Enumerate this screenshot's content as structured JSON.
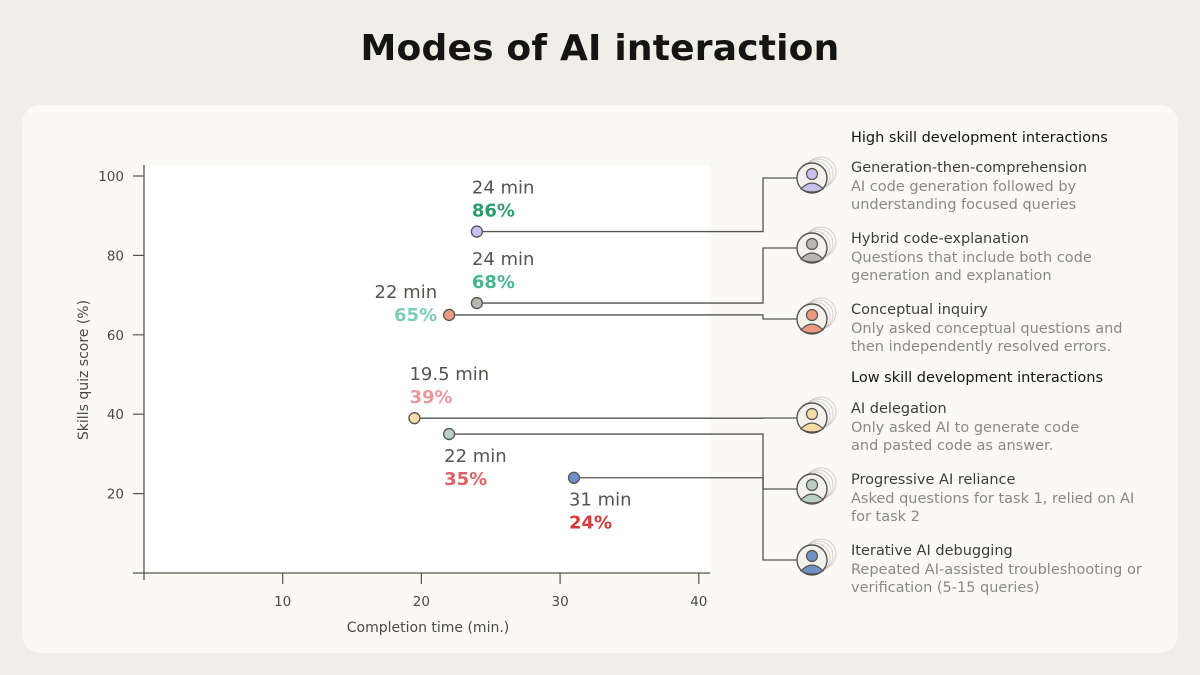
{
  "title": "Modes of AI interaction",
  "legend": {
    "high_heading": "High skill development interactions",
    "low_heading": "Low skill development interactions",
    "items": [
      {
        "name": "Generation-then-comprehension",
        "desc": "AI code generation followed by understanding focused queries",
        "color": "#c6c1ee",
        "group": "high",
        "icon": "user-avatar-icon"
      },
      {
        "name": "Hybrid code-explanation",
        "desc": "Questions that include both code generation and explanation",
        "color": "#b9b7af",
        "group": "high",
        "icon": "user-avatar-icon"
      },
      {
        "name": "Conceptual inquiry",
        "desc": "Only asked conceptual questions and then independently resolved errors.",
        "color": "#ea9a7f",
        "group": "high",
        "icon": "user-avatar-icon"
      },
      {
        "name": "AI delegation",
        "desc": "Only asked AI to generate code and pasted code as answer.",
        "color": "#f6dca8",
        "group": "low",
        "icon": "user-avatar-icon"
      },
      {
        "name": "Progressive AI reliance",
        "desc": "Asked questions for task 1, relied on AI for task 2",
        "color": "#bccfc5",
        "group": "low",
        "icon": "user-avatar-icon"
      },
      {
        "name": "Iterative AI debugging",
        "desc": "Repeated AI-assisted troubleshooting or verification (5-15 queries)",
        "color": "#6e92c6",
        "group": "low",
        "icon": "user-avatar-icon"
      }
    ]
  },
  "chart_data": {
    "type": "scatter",
    "xlabel": "Completion time (min.)",
    "ylabel": "Skills quiz score (%)",
    "xlim": [
      0,
      41
    ],
    "ylim": [
      0,
      102
    ],
    "xticks": [
      10,
      20,
      30,
      40
    ],
    "yticks": [
      20,
      40,
      60,
      80,
      100
    ],
    "grid": false,
    "points": [
      {
        "series": "Generation-then-comprehension",
        "x": 24,
        "y": 86,
        "time_label": "24 min",
        "score_label": "86%",
        "score_color": "#2b9d6c",
        "label_pos": "above"
      },
      {
        "series": "Hybrid code-explanation",
        "x": 24,
        "y": 68,
        "time_label": "24 min",
        "score_label": "68%",
        "score_color": "#45b68f",
        "label_pos": "above"
      },
      {
        "series": "Conceptual inquiry",
        "x": 22,
        "y": 65,
        "time_label": "22 min",
        "score_label": "65%",
        "score_color": "#7dcfb1",
        "label_pos": "left"
      },
      {
        "series": "AI delegation",
        "x": 19.5,
        "y": 39,
        "time_label": "19.5 min",
        "score_label": "39%",
        "score_color": "#e79a9b",
        "label_pos": "above"
      },
      {
        "series": "Progressive AI reliance",
        "x": 22,
        "y": 35,
        "time_label": "22 min",
        "score_label": "35%",
        "score_color": "#de6161",
        "label_pos": "below"
      },
      {
        "series": "Iterative AI debugging",
        "x": 31,
        "y": 24,
        "time_label": "31 min",
        "score_label": "24%",
        "score_color": "#d43a3a",
        "label_pos": "below"
      }
    ]
  }
}
